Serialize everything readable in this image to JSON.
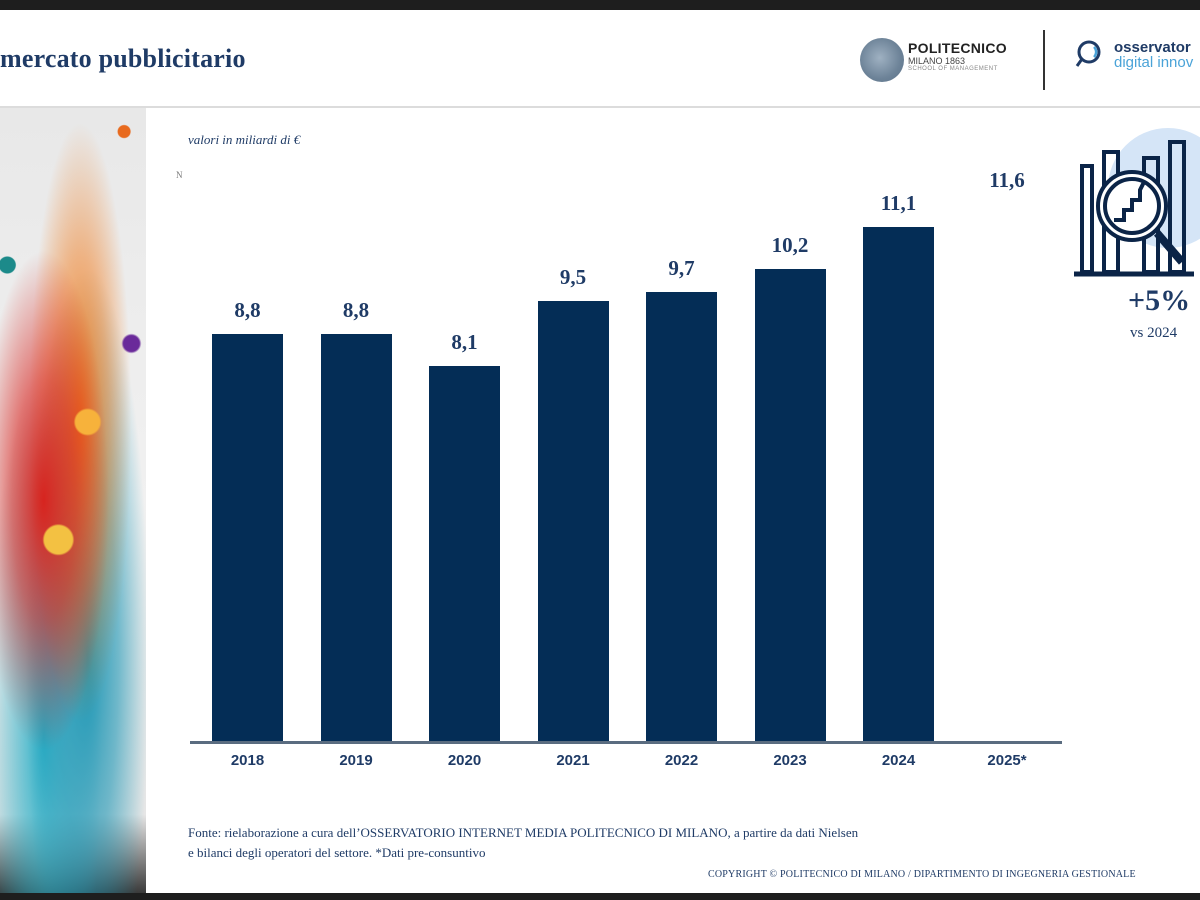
{
  "header": {
    "title": "mercato pubblicitario",
    "logo_polimi": {
      "name": "POLITECNICO",
      "sub": "MILANO 1863",
      "sub2": "SCHOOL OF MANAGEMENT"
    },
    "logo_osservatori": {
      "line1": "osservator",
      "line2": "digital innov"
    }
  },
  "units_note": "valori in miliardi di €",
  "tiny_marker": "N",
  "kpi": {
    "value": "+5%",
    "subtitle": "vs 2024",
    "icon": "chart-magnifier-icon",
    "accent": "#d5e5f7"
  },
  "chart_data": {
    "type": "bar",
    "title": "",
    "xlabel": "",
    "ylabel": "valori in miliardi di €",
    "categories": [
      "2018",
      "2019",
      "2020",
      "2021",
      "2022",
      "2023",
      "2024",
      "2025*"
    ],
    "values": [
      8.8,
      8.8,
      8.1,
      9.5,
      9.7,
      10.2,
      11.1,
      11.6
    ],
    "labels": [
      "8,8",
      "8,8",
      "8,1",
      "9,5",
      "9,7",
      "10,2",
      "11,1",
      "11,6"
    ],
    "bar_visible": [
      true,
      true,
      true,
      true,
      true,
      true,
      true,
      false
    ],
    "bar_color": "#042d56",
    "ylim": [
      0,
      12
    ],
    "grid": false,
    "legend": "none"
  },
  "footer": {
    "source_line1": "Fonte: rielaborazione a cura dell’OSSERVATORIO INTERNET MEDIA POLITECNICO DI MILANO, a partire da dati Nielsen",
    "source_line2": "e bilanci degli operatori del settore. *Dati pre-consuntivo",
    "copyright": "COPYRIGHT © POLITECNICO DI MILANO / DIPARTIMENTO DI INGEGNERIA GESTIONALE"
  }
}
